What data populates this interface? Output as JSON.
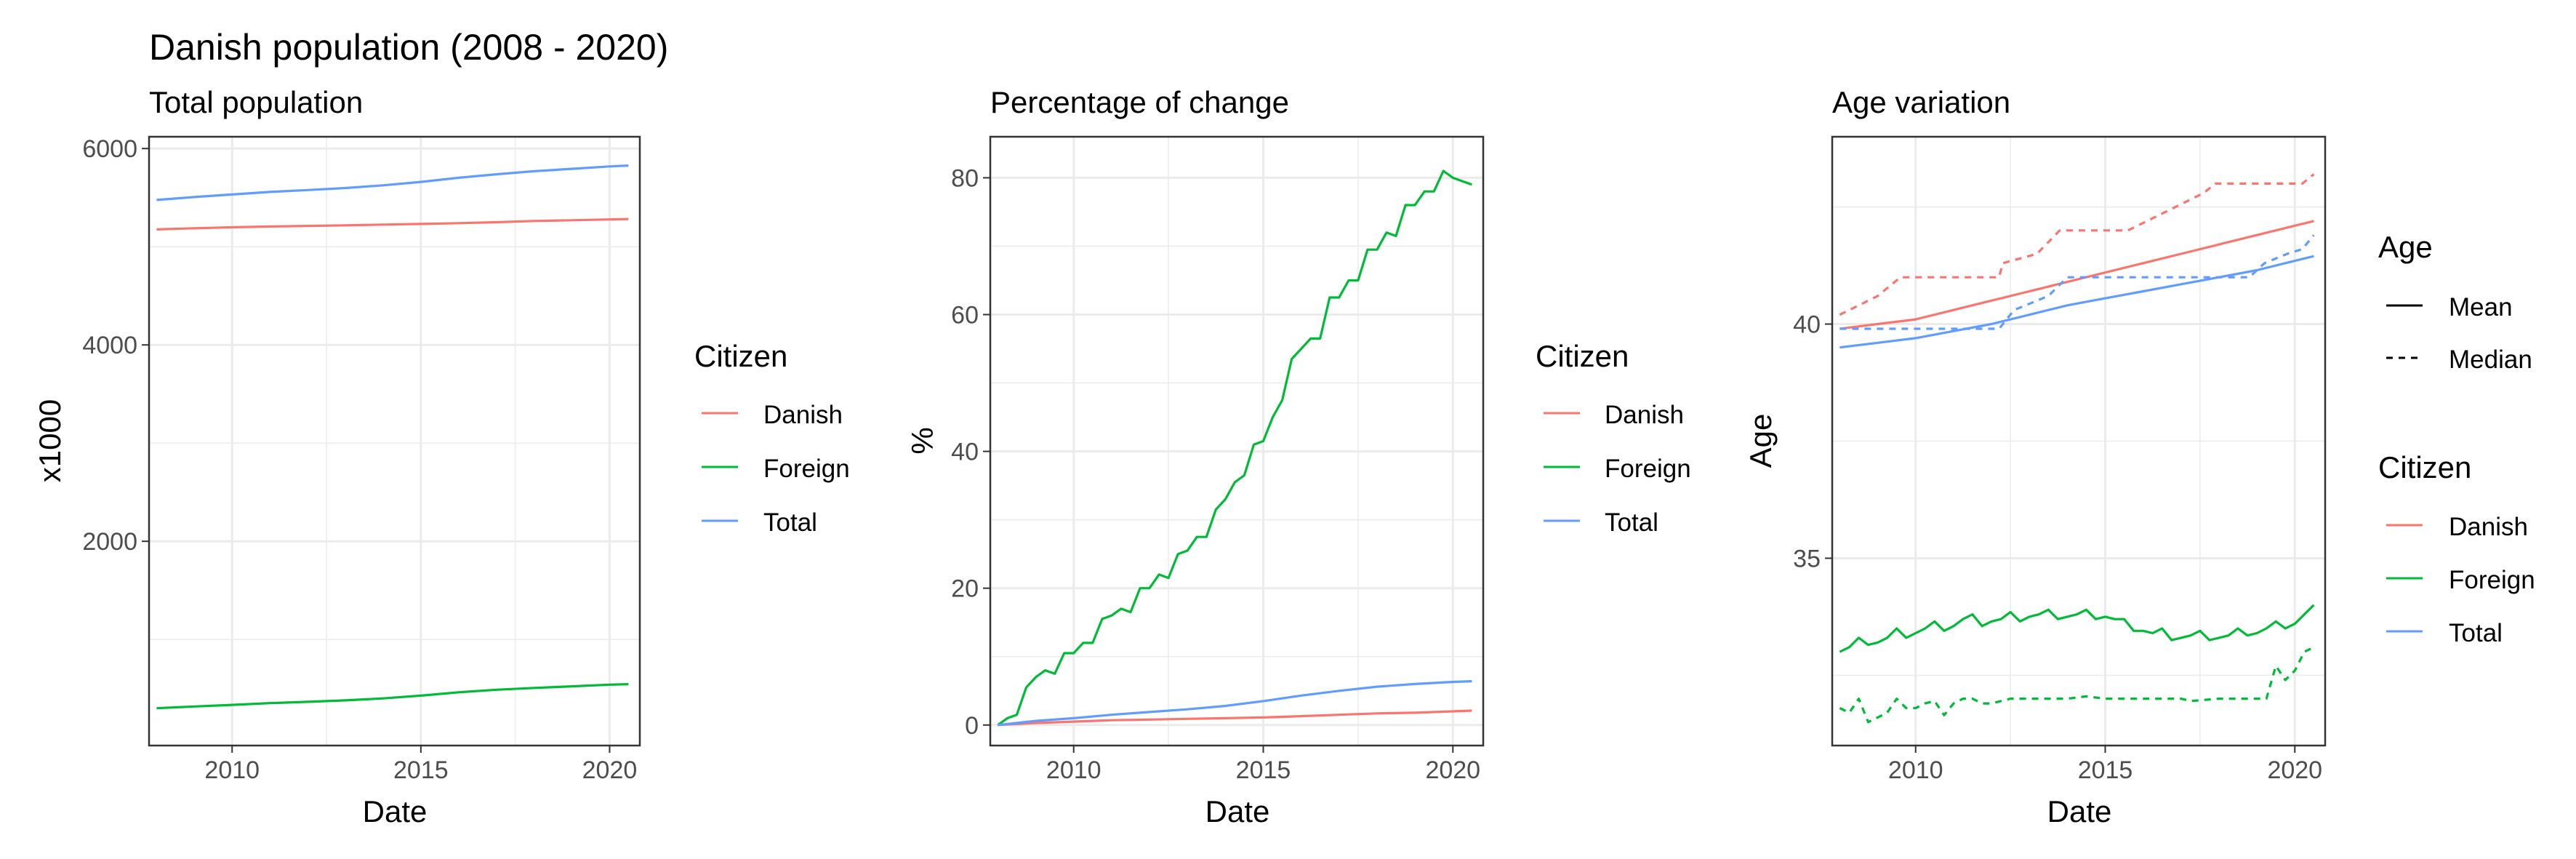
{
  "figure": {
    "title": "Danish population (2008 - 2020)"
  },
  "colors": {
    "Danish": "#F8766D",
    "Foreign": "#00BA38",
    "Total": "#619CFF",
    "grid": "#EBEBEB",
    "border": "#333333",
    "tick_text": "#4D4D4D"
  },
  "chart_data": [
    {
      "type": "line",
      "subtitle": "Total population",
      "xlabel": "Date",
      "ylabel": "x1000",
      "xlim": [
        2007.8,
        2020.8
      ],
      "ylim": [
        -80,
        6120
      ],
      "xticks": [
        2010,
        2015,
        2020
      ],
      "yticks": [
        2000,
        4000,
        6000
      ],
      "grid": true,
      "legend": {
        "title": "Citizen",
        "entries": [
          "Danish",
          "Foreign",
          "Total"
        ],
        "placement": "right"
      },
      "series": [
        {
          "name": "Danish",
          "linetype": "solid",
          "x": [
            2008,
            2009,
            2010,
            2011,
            2012,
            2013,
            2014,
            2015,
            2016,
            2017,
            2018,
            2019,
            2020,
            2020.5
          ],
          "y": [
            5176,
            5188,
            5198,
            5206,
            5212,
            5218,
            5225,
            5232,
            5240,
            5250,
            5262,
            5270,
            5278,
            5282
          ]
        },
        {
          "name": "Foreign",
          "linetype": "solid",
          "x": [
            2008,
            2009,
            2010,
            2011,
            2012,
            2013,
            2014,
            2015,
            2016,
            2017,
            2018,
            2019,
            2020,
            2020.5
          ],
          "y": [
            300,
            318,
            334,
            352,
            365,
            380,
            400,
            428,
            462,
            488,
            507,
            523,
            540,
            545
          ]
        },
        {
          "name": "Total",
          "linetype": "solid",
          "x": [
            2008,
            2009,
            2010,
            2011,
            2012,
            2013,
            2014,
            2015,
            2016,
            2017,
            2018,
            2019,
            2020,
            2020.5
          ],
          "y": [
            5476,
            5506,
            5532,
            5558,
            5577,
            5598,
            5625,
            5660,
            5702,
            5738,
            5769,
            5793,
            5818,
            5827
          ]
        }
      ]
    },
    {
      "type": "line",
      "subtitle": "Percentage of change",
      "xlabel": "Date",
      "ylabel": "%",
      "xlim": [
        2007.8,
        2020.8
      ],
      "ylim": [
        -3,
        86
      ],
      "xticks": [
        2010,
        2015,
        2020
      ],
      "yticks": [
        0,
        20,
        40,
        60,
        80
      ],
      "grid": true,
      "legend": {
        "title": "Citizen",
        "entries": [
          "Danish",
          "Foreign",
          "Total"
        ],
        "placement": "right"
      },
      "series": [
        {
          "name": "Danish",
          "linetype": "solid",
          "x": [
            2008,
            2009,
            2010,
            2011,
            2012,
            2013,
            2014,
            2015,
            2016,
            2017,
            2018,
            2019,
            2020,
            2020.5
          ],
          "y": [
            0,
            0.3,
            0.5,
            0.7,
            0.8,
            0.9,
            1.0,
            1.1,
            1.3,
            1.5,
            1.7,
            1.8,
            2.0,
            2.1
          ]
        },
        {
          "name": "Foreign",
          "linetype": "solid",
          "x": [
            2008,
            2008.25,
            2008.5,
            2008.75,
            2009,
            2009.25,
            2009.5,
            2009.75,
            2010,
            2010.25,
            2010.5,
            2010.75,
            2011,
            2011.25,
            2011.5,
            2011.75,
            2012,
            2012.25,
            2012.5,
            2012.75,
            2013,
            2013.25,
            2013.5,
            2013.75,
            2014,
            2014.25,
            2014.5,
            2014.75,
            2015,
            2015.25,
            2015.5,
            2015.75,
            2016,
            2016.25,
            2016.5,
            2016.75,
            2017,
            2017.25,
            2017.5,
            2017.75,
            2018,
            2018.25,
            2018.5,
            2018.75,
            2019,
            2019.25,
            2019.5,
            2019.75,
            2020,
            2020.25,
            2020.5
          ],
          "y": [
            0,
            1.0,
            1.5,
            5.5,
            7.0,
            8.0,
            7.5,
            10.5,
            10.5,
            12.0,
            12.0,
            15.5,
            16.0,
            17.0,
            16.5,
            20.0,
            20.0,
            22.0,
            21.5,
            25.0,
            25.5,
            27.5,
            27.5,
            31.5,
            33.0,
            35.5,
            36.5,
            41.0,
            41.5,
            45.0,
            47.5,
            53.5,
            55.0,
            56.5,
            56.5,
            62.5,
            62.5,
            65.0,
            65.0,
            69.5,
            69.5,
            72.0,
            71.5,
            76.0,
            76.0,
            78.0,
            78.0,
            81.0,
            80.0,
            79.5,
            79.0
          ]
        },
        {
          "name": "Total",
          "linetype": "solid",
          "x": [
            2008,
            2009,
            2010,
            2011,
            2012,
            2013,
            2014,
            2015,
            2016,
            2017,
            2018,
            2019,
            2020,
            2020.5
          ],
          "y": [
            0,
            0.6,
            1.0,
            1.5,
            1.9,
            2.3,
            2.8,
            3.5,
            4.3,
            5.0,
            5.6,
            6.0,
            6.3,
            6.4
          ]
        }
      ]
    },
    {
      "type": "line",
      "subtitle": "Age variation",
      "xlabel": "Date",
      "ylabel": "Age",
      "xlim": [
        2007.8,
        2020.8
      ],
      "ylim": [
        31.0,
        44.0
      ],
      "xticks": [
        2010,
        2015,
        2020
      ],
      "yticks": [
        35,
        40
      ],
      "grid": true,
      "legend": [
        {
          "title": "Age",
          "entries": [
            "Mean",
            "Median"
          ],
          "placement": "right"
        },
        {
          "title": "Citizen",
          "entries": [
            "Danish",
            "Foreign",
            "Total"
          ],
          "placement": "right"
        }
      ],
      "series": [
        {
          "name": "Danish",
          "linetype": "Mean",
          "x": [
            2008,
            2009,
            2010,
            2011,
            2012,
            2013,
            2014,
            2015,
            2016,
            2017,
            2018,
            2019,
            2020,
            2020.5
          ],
          "y": [
            39.9,
            40.0,
            40.1,
            40.3,
            40.5,
            40.7,
            40.9,
            41.1,
            41.3,
            41.5,
            41.7,
            41.9,
            42.1,
            42.2
          ]
        },
        {
          "name": "Danish",
          "linetype": "Median",
          "x": [
            2008,
            2009,
            2009.6,
            2012.2,
            2012.3,
            2013.2,
            2013.8,
            2015.6,
            2017.6,
            2017.9,
            2019.9,
            2020.2,
            2020.5
          ],
          "y": [
            40.2,
            40.6,
            41.0,
            41.0,
            41.3,
            41.5,
            42.0,
            42.0,
            42.8,
            43.0,
            43.0,
            43.0,
            43.2
          ]
        },
        {
          "name": "Total",
          "linetype": "Mean",
          "x": [
            2008,
            2009,
            2010,
            2011,
            2012,
            2013,
            2014,
            2015,
            2016,
            2017,
            2018,
            2019,
            2020,
            2020.5
          ],
          "y": [
            39.5,
            39.6,
            39.7,
            39.85,
            40.0,
            40.2,
            40.4,
            40.55,
            40.7,
            40.85,
            41.0,
            41.15,
            41.35,
            41.45
          ]
        },
        {
          "name": "Total",
          "linetype": "Median",
          "x": [
            2008,
            2012.2,
            2012.6,
            2013.5,
            2014,
            2017.8,
            2018.8,
            2019.2,
            2019.8,
            2020.2,
            2020.5
          ],
          "y": [
            39.9,
            39.9,
            40.3,
            40.6,
            41.0,
            41.0,
            41.0,
            41.3,
            41.5,
            41.6,
            41.9
          ]
        },
        {
          "name": "Foreign",
          "linetype": "Mean",
          "x": [
            2008,
            2008.25,
            2008.5,
            2008.75,
            2009,
            2009.25,
            2009.5,
            2009.75,
            2010,
            2010.25,
            2010.5,
            2010.75,
            2011,
            2011.25,
            2011.5,
            2011.75,
            2012,
            2012.25,
            2012.5,
            2012.75,
            2013,
            2013.25,
            2013.5,
            2013.75,
            2014,
            2014.25,
            2014.5,
            2014.75,
            2015,
            2015.25,
            2015.5,
            2015.75,
            2016,
            2016.25,
            2016.5,
            2016.75,
            2017,
            2017.25,
            2017.5,
            2017.75,
            2018,
            2018.25,
            2018.5,
            2018.75,
            2019,
            2019.25,
            2019.5,
            2019.75,
            2020,
            2020.25,
            2020.5
          ],
          "y": [
            33.0,
            33.1,
            33.3,
            33.15,
            33.2,
            33.3,
            33.5,
            33.3,
            33.4,
            33.5,
            33.65,
            33.45,
            33.55,
            33.7,
            33.8,
            33.55,
            33.65,
            33.7,
            33.85,
            33.65,
            33.75,
            33.8,
            33.9,
            33.7,
            33.75,
            33.8,
            33.9,
            33.7,
            33.75,
            33.7,
            33.7,
            33.45,
            33.45,
            33.4,
            33.5,
            33.25,
            33.3,
            33.35,
            33.45,
            33.25,
            33.3,
            33.35,
            33.5,
            33.35,
            33.4,
            33.5,
            33.65,
            33.5,
            33.6,
            33.8,
            34.0
          ]
        },
        {
          "name": "Foreign",
          "linetype": "Median",
          "x": [
            2008,
            2008.25,
            2008.5,
            2008.75,
            2009,
            2009.25,
            2009.5,
            2009.75,
            2010,
            2010.25,
            2010.5,
            2010.75,
            2011,
            2011.25,
            2011.5,
            2011.75,
            2012,
            2012.5,
            2013,
            2014,
            2014.5,
            2015,
            2016,
            2017,
            2017.25,
            2018,
            2019,
            2019.25,
            2019.5,
            2019.75,
            2020,
            2020.25,
            2020.5
          ],
          "y": [
            31.8,
            31.7,
            32.0,
            31.5,
            31.6,
            31.7,
            32.0,
            31.8,
            31.8,
            31.9,
            31.95,
            31.65,
            31.9,
            32.0,
            32.0,
            31.9,
            31.9,
            32.0,
            32.0,
            32.0,
            32.05,
            32.0,
            32.0,
            32.0,
            31.95,
            32.0,
            32.0,
            32.0,
            32.7,
            32.4,
            32.6,
            33.0,
            33.1
          ]
        }
      ]
    }
  ]
}
